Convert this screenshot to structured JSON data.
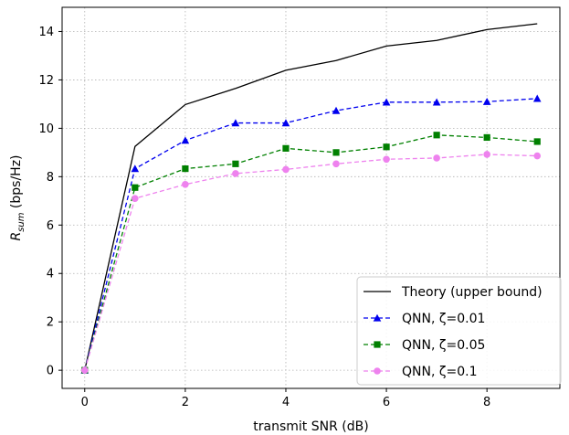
{
  "chart_data": {
    "type": "line",
    "xlabel": "transmit SNR (dB)",
    "ylabel_main": "R",
    "ylabel_sub": "sum",
    "ylabel_unit": " (bps/Hz)",
    "xlim": [
      -0.45,
      9.45
    ],
    "ylim": [
      -0.75,
      15.0
    ],
    "xticks": [
      0,
      2,
      4,
      6,
      8
    ],
    "yticks": [
      0,
      2,
      4,
      6,
      8,
      10,
      12,
      14
    ],
    "grid": true,
    "legend_position": "lower-right",
    "x": [
      0,
      1,
      2,
      3,
      4,
      5,
      6,
      7,
      8,
      9
    ],
    "series": [
      {
        "name": "Theory (upper bound)",
        "color": "#000000",
        "marker": "none",
        "linestyle": "solid",
        "values": [
          0,
          9.25,
          10.98,
          11.65,
          12.4,
          12.8,
          13.4,
          13.63,
          14.08,
          14.32
        ]
      },
      {
        "name": "QNN, ζ=0.01",
        "color": "#0000ee",
        "marker": "triangle",
        "linestyle": "dashed",
        "values": [
          0,
          8.33,
          9.5,
          10.22,
          10.22,
          10.73,
          11.08,
          11.08,
          11.1,
          11.23
        ]
      },
      {
        "name": "QNN, ζ=0.05",
        "color": "#008000",
        "marker": "square",
        "linestyle": "dashed",
        "values": [
          0,
          7.55,
          8.33,
          8.53,
          9.17,
          9.0,
          9.23,
          9.72,
          9.62,
          9.45
        ]
      },
      {
        "name": "QNN, ζ=0.1",
        "color": "#ee82ee",
        "marker": "circle",
        "linestyle": "dashed",
        "values": [
          0,
          7.1,
          7.68,
          8.13,
          8.3,
          8.53,
          8.72,
          8.77,
          8.92,
          8.86
        ]
      }
    ]
  }
}
